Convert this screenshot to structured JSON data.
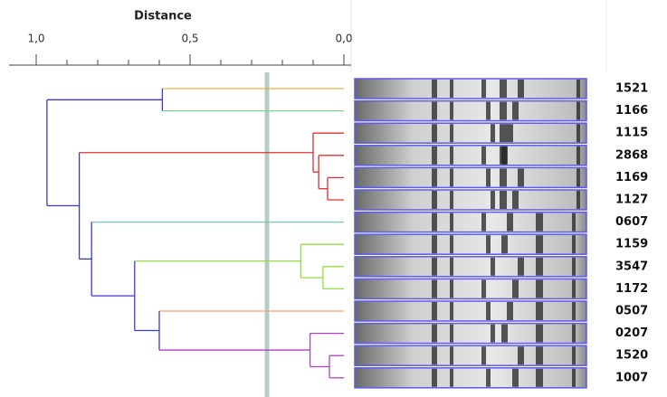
{
  "chart_data": {
    "type": "dendrogram",
    "x_label": "Distance",
    "xlim": [
      1.0,
      0.0
    ],
    "xticks": [
      {
        "value": 1.0,
        "label": "1,0"
      },
      {
        "value": 0.5,
        "label": "0,5"
      },
      {
        "value": 0.0,
        "label": "0,0"
      }
    ],
    "minor_xticks": [
      0.9,
      0.8,
      0.7,
      0.6,
      0.4,
      0.3,
      0.2,
      0.1
    ],
    "cutoff": 0.25,
    "tree": {
      "height": 0.965,
      "color": "#3a3ad0",
      "children": [
        {
          "height": 0.59,
          "color": "#3a3ad0",
          "children": [
            {
              "label": "1521",
              "color": "#f0b040"
            },
            {
              "label": "1166",
              "color": "#7ed08a"
            }
          ]
        },
        {
          "height": 0.86,
          "color": "#3a3ad0",
          "children": [
            {
              "height": 0.1,
              "color": "#e03030",
              "children": [
                {
                  "label": "1115",
                  "color": "#e03030"
                },
                {
                  "height": 0.082,
                  "color": "#e03030",
                  "children": [
                    {
                      "label": "2868",
                      "color": "#e03030"
                    },
                    {
                      "height": 0.053,
                      "color": "#e03030",
                      "children": [
                        {
                          "label": "1169",
                          "color": "#e03030"
                        },
                        {
                          "label": "1127",
                          "color": "#e03030"
                        }
                      ]
                    }
                  ]
                }
              ]
            },
            {
              "height": 0.82,
              "color": "#3a3ad0",
              "children": [
                {
                  "label": "0607",
                  "color": "#70c8b8"
                },
                {
                  "height": 0.68,
                  "color": "#3a3ad0",
                  "children": [
                    {
                      "height": 0.14,
                      "color": "#90e040",
                      "children": [
                        {
                          "label": "1159",
                          "color": "#90e040"
                        },
                        {
                          "height": 0.068,
                          "color": "#90e040",
                          "children": [
                            {
                              "label": "3547",
                              "color": "#90e040"
                            },
                            {
                              "label": "1172",
                              "color": "#90e040"
                            }
                          ]
                        }
                      ]
                    },
                    {
                      "height": 0.6,
                      "color": "#3a3ad0",
                      "children": [
                        {
                          "label": "0507",
                          "color": "#f0a070"
                        },
                        {
                          "height": 0.11,
                          "color": "#b040c0",
                          "children": [
                            {
                              "label": "0207",
                              "color": "#b040c0"
                            },
                            {
                              "height": 0.047,
                              "color": "#b040c0",
                              "children": [
                                {
                                  "label": "1520",
                                  "color": "#b040c0"
                                },
                                {
                                  "label": "1007",
                                  "color": "#b040c0"
                                }
                              ]
                            }
                          ]
                        }
                      ]
                    }
                  ]
                }
              ]
            }
          ]
        }
      ]
    }
  }
}
